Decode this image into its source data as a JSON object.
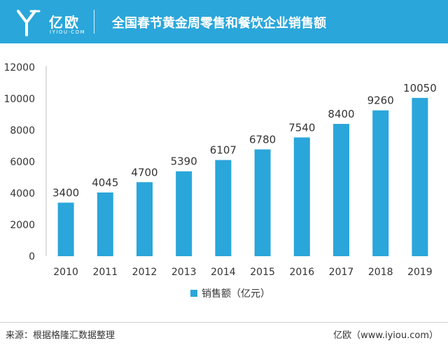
{
  "header": {
    "logo_text": "亿欧",
    "logo_sub": "IYIOU·COM",
    "title": "全国春节黄金周零售和餐饮企业销售额"
  },
  "chart_data": {
    "type": "bar",
    "categories": [
      "2010",
      "2011",
      "2012",
      "2013",
      "2014",
      "2015",
      "2016",
      "2017",
      "2018",
      "2019"
    ],
    "series": [
      {
        "name": "销售额（亿元）",
        "values": [
          3400,
          4045,
          4700,
          5390,
          6107,
          6780,
          7540,
          8400,
          9260,
          10050
        ],
        "color": "#2AA6DA"
      }
    ],
    "ylim": [
      0,
      12000
    ],
    "yticks": [
      0,
      2000,
      4000,
      6000,
      8000,
      10000,
      12000
    ],
    "grid": false,
    "legend_position": "bottom-center"
  },
  "footer": {
    "source": "来源：根据格隆汇数据整理",
    "credit": "亿欧（www.iyiou.com）"
  }
}
